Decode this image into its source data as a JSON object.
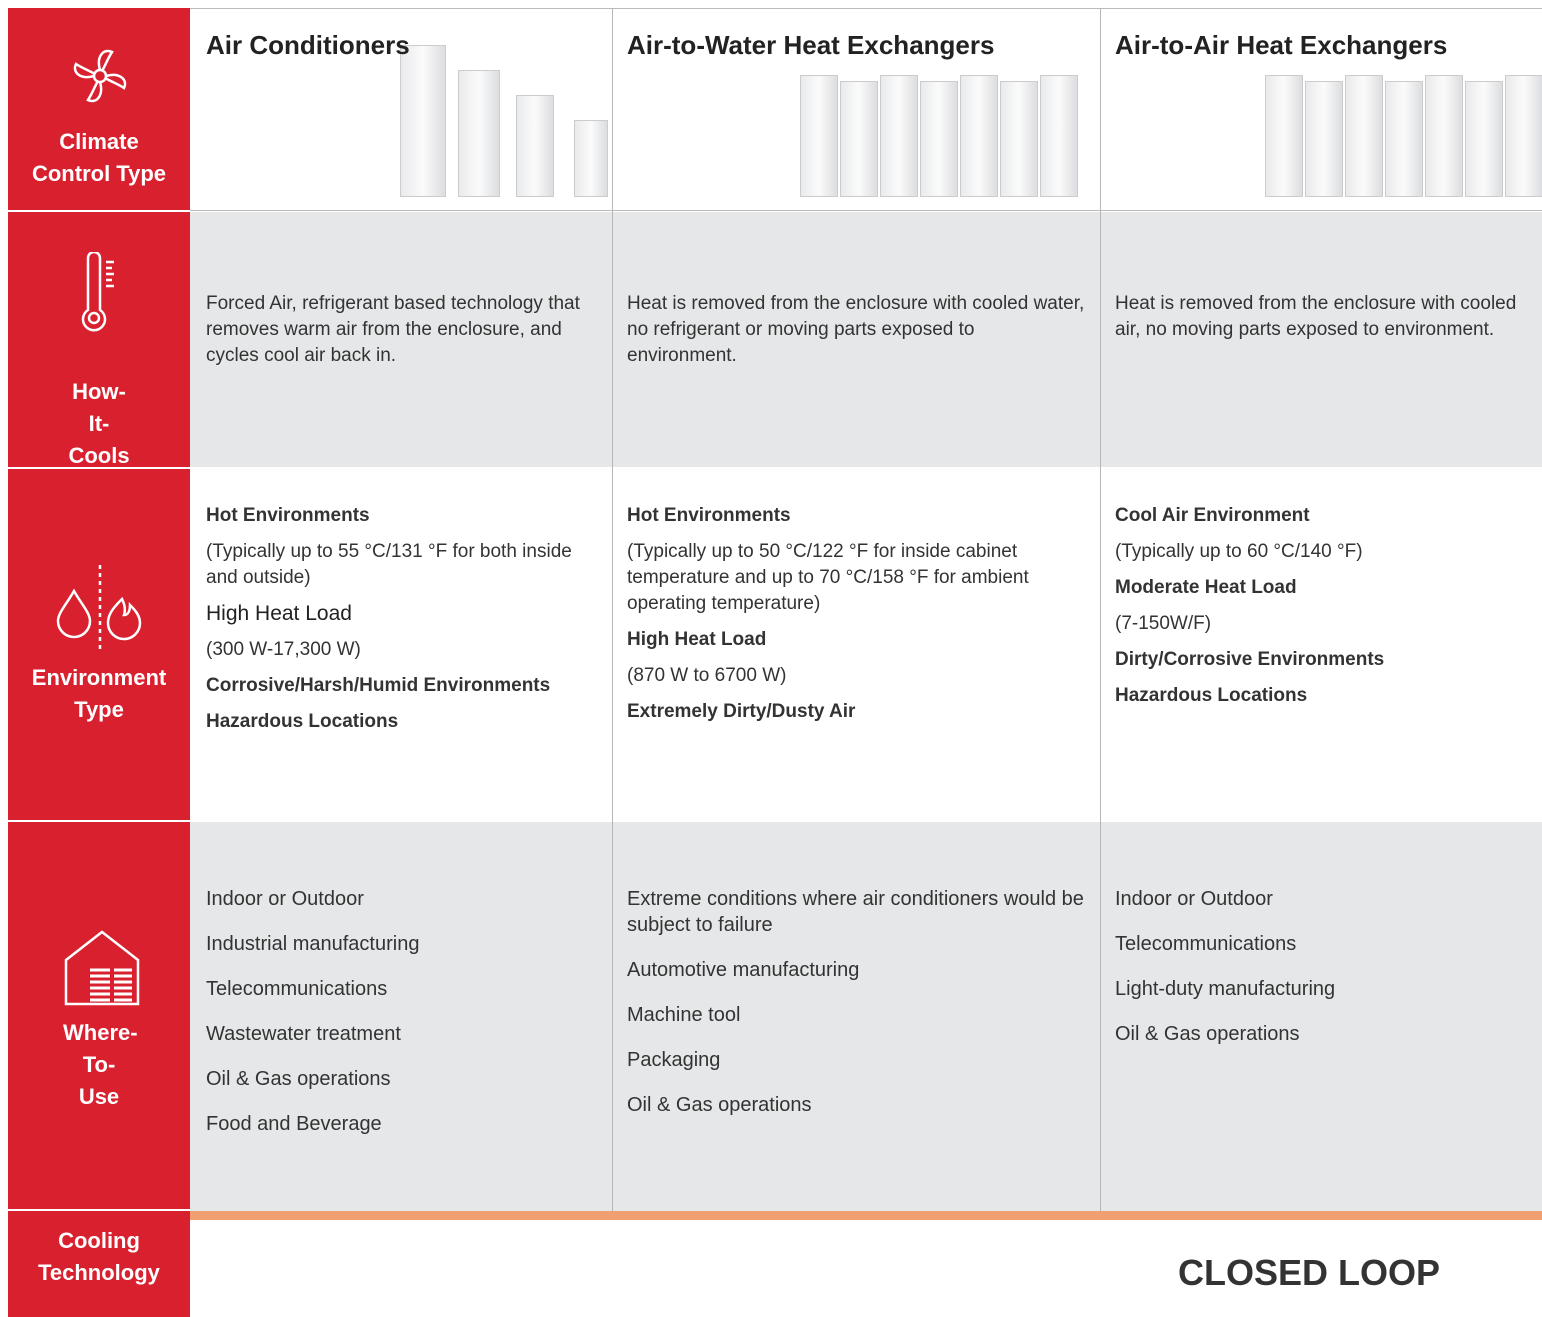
{
  "row_headers": [
    "Climate Control Type",
    "How-It-Cools",
    "Environment Type",
    "Where-To-Use",
    "Cooling Technology"
  ],
  "columns": [
    {
      "title": "Air Conditioners",
      "description": "Forced Air, refrigerant based technology that removes warm air from the enclosure, and cycles cool air back in.",
      "environment": [
        {
          "heading": "Hot Environments",
          "detail": "(Typically up to 55 °C/131 °F for both inside and outside)"
        },
        {
          "heading": "High Heat Load",
          "detail": "(300 W-17,300 W)"
        },
        {
          "heading": "Corrosive/Harsh/Humid Environments"
        },
        {
          "heading": "Hazardous Locations"
        }
      ],
      "where_to_use": [
        "Indoor or Outdoor",
        "Industrial manufacturing",
        "Telecommunications",
        "Wastewater treatment",
        "Oil & Gas operations",
        "Food and Beverage"
      ]
    },
    {
      "title": "Air-to-Water Heat Exchangers",
      "description": "Heat is removed from the enclosure with cooled water, no refrigerant or moving parts exposed to environment.",
      "environment": [
        {
          "heading": "Hot Environments",
          "detail": "(Typically up to 50 °C/122 °F for inside cabinet temperature and up to 70 °C/158 °F for ambient operating temperature)"
        },
        {
          "heading": "High Heat Load",
          "detail": "(870 W to 6700 W)"
        },
        {
          "heading": "Extremely Dirty/Dusty Air"
        }
      ],
      "where_to_use": [
        "Extreme conditions where air conditioners would be subject to failure",
        "Automotive manufacturing",
        "Machine tool",
        "Packaging",
        "Oil & Gas operations"
      ]
    },
    {
      "title": "Air-to-Air Heat Exchangers",
      "description": "Heat is removed from the enclosure with cooled air, no moving parts exposed to environment.",
      "environment": [
        {
          "heading": "Cool Air Environment",
          "detail": "(Typically up to 60 °C/140 °F)"
        },
        {
          "heading": "Moderate Heat Load",
          "detail": "(7-150W/F)"
        },
        {
          "heading": "Dirty/Corrosive Environments"
        },
        {
          "heading": "Hazardous Locations"
        }
      ],
      "where_to_use": [
        "Indoor or Outdoor",
        "Telecommunications",
        "Light-duty manufacturing",
        "Oil & Gas operations"
      ]
    }
  ],
  "cooling_technology": "CLOSED LOOP"
}
